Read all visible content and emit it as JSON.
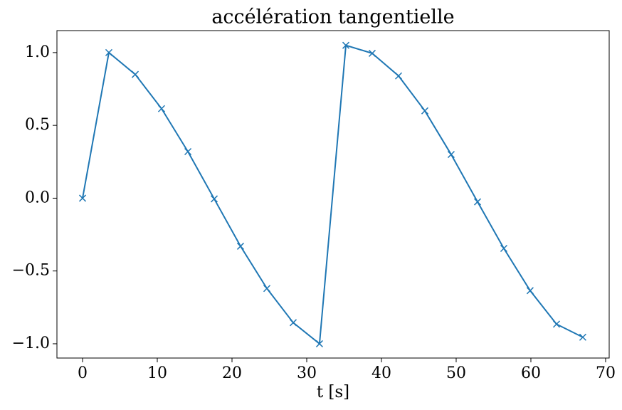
{
  "chart_data": {
    "type": "line",
    "title": "accélération tangentielle",
    "x_label": "t [s]",
    "x": [
      0,
      3.52,
      7.05,
      10.57,
      14.1,
      17.62,
      21.14,
      24.67,
      28.19,
      31.71,
      35.24,
      38.76,
      42.29,
      45.81,
      49.33,
      52.86,
      56.38,
      59.9,
      63.43,
      66.95
    ],
    "series": [
      {
        "color": "#1f77b4",
        "marker": "x",
        "values": [
          0,
          1.0,
          0.85,
          0.615,
          0.32,
          -0.005,
          -0.33,
          -0.62,
          -0.855,
          -1.0,
          1.05,
          0.995,
          0.84,
          0.6,
          0.3,
          -0.025,
          -0.345,
          -0.635,
          -0.865,
          -0.955
        ]
      }
    ],
    "xlim": [
      -3.43,
      70.48
    ],
    "xticks": [
      0,
      10,
      20,
      30,
      40,
      50,
      60,
      70
    ],
    "ylim": [
      -1.098,
      1.151
    ],
    "yticks": [
      {
        "value": -1.0,
        "label": "−1.0"
      },
      {
        "value": -0.5,
        "label": "−0.5"
      },
      {
        "value": 0,
        "label": "0.0"
      },
      {
        "value": 0.5,
        "label": "0.5"
      },
      {
        "value": 1.0,
        "label": "1.0"
      }
    ],
    "grid": false
  }
}
